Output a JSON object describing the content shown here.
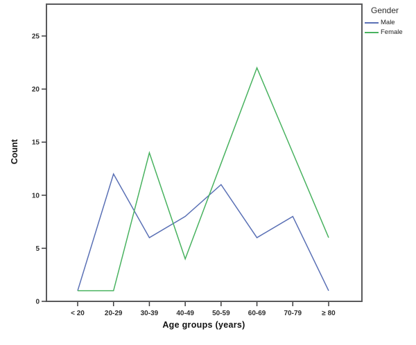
{
  "chart_data": {
    "type": "line",
    "title": "",
    "categories": [
      "< 20",
      "20-29",
      "30-39",
      "40-49",
      "50-59",
      "60-69",
      "70-79",
      "≥ 80"
    ],
    "series": [
      {
        "name": "Male",
        "color": "#5a70b5",
        "values": [
          1,
          12,
          6,
          8,
          11,
          6,
          8,
          1
        ]
      },
      {
        "name": "Female",
        "color": "#48b25f",
        "values": [
          1,
          1,
          14,
          4,
          13,
          22,
          14,
          6
        ]
      }
    ],
    "xlabel": "Age groups (years)",
    "ylabel": "Count",
    "ylim": [
      0,
      28
    ],
    "yticks": [
      0,
      5,
      10,
      15,
      20,
      25
    ],
    "legend_title": "Gender",
    "legend_position": "top-right-outside",
    "grid": false
  },
  "colors": {
    "frame": "#59595b",
    "tick": "#3a3a3c",
    "tick_label": "#2e2e2e",
    "background": "#ffffff"
  }
}
